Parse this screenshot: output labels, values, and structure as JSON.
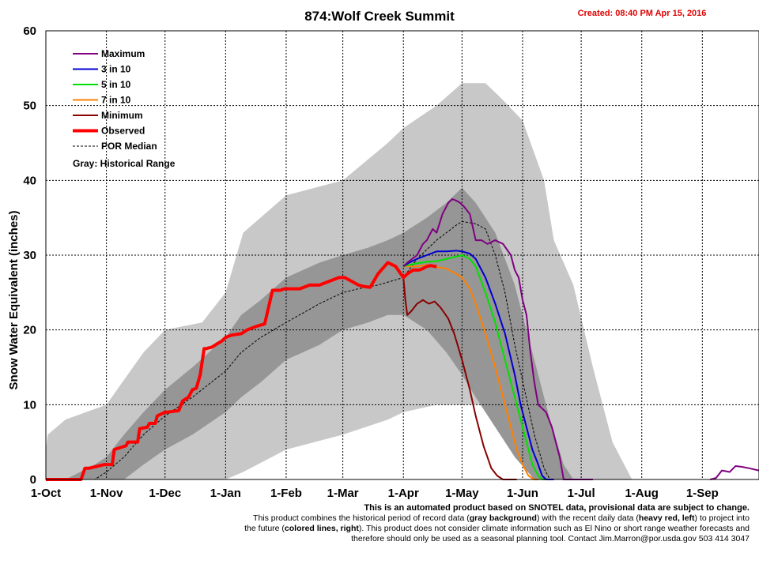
{
  "chart_data": {
    "type": "line",
    "title": "874:Wolf Creek Summit",
    "created": "Created: 08:40 PM Apr 15, 2016",
    "ylabel": "Snow Water Equivalent (inches)",
    "ylim": [
      0,
      60
    ],
    "yticks": [
      0,
      10,
      20,
      30,
      40,
      50,
      60
    ],
    "x_unit": "day of water year (Oct 1 = 0)",
    "xlim": [
      0,
      365
    ],
    "x_ticks": [
      {
        "day": 0,
        "label": "1-Oct"
      },
      {
        "day": 31,
        "label": "1-Nov"
      },
      {
        "day": 61,
        "label": "1-Dec"
      },
      {
        "day": 92,
        "label": "1-Jan"
      },
      {
        "day": 123,
        "label": "1-Feb"
      },
      {
        "day": 152,
        "label": "1-Mar"
      },
      {
        "day": 183,
        "label": "1-Apr"
      },
      {
        "day": 213,
        "label": "1-May"
      },
      {
        "day": 244,
        "label": "1-Jun"
      },
      {
        "day": 274,
        "label": "1-Jul"
      },
      {
        "day": 305,
        "label": "1-Aug"
      },
      {
        "day": 336,
        "label": "1-Sep"
      }
    ],
    "grid": true,
    "legend_position": "top-left",
    "legend_note": "Gray: Historical Range",
    "colors": {
      "hist_light": "#c8c8c8",
      "hist_dark": "#969696"
    },
    "historical_range": {
      "x": [
        0,
        1,
        10,
        31,
        50,
        61,
        80,
        92,
        101,
        123,
        152,
        175,
        183,
        200,
        213,
        225,
        233,
        244,
        255,
        260,
        270,
        280,
        290,
        300,
        305
      ],
      "lo": [
        0,
        0,
        0,
        0,
        0,
        0,
        0,
        0,
        1,
        4,
        6,
        8,
        9,
        10,
        10,
        10,
        9,
        5,
        1,
        0,
        0,
        0,
        0,
        0,
        0
      ],
      "hi": [
        4,
        6,
        8,
        10,
        17,
        20,
        21,
        25,
        33,
        38,
        40,
        45,
        47,
        50,
        53,
        53,
        51,
        48,
        40,
        32,
        26,
        15,
        5,
        0,
        0
      ]
    },
    "interquartile_range": {
      "x": [
        0,
        10,
        25,
        31,
        40,
        50,
        61,
        75,
        92,
        100,
        110,
        123,
        140,
        152,
        165,
        175,
        183,
        195,
        205,
        213,
        220,
        230,
        240,
        250,
        258,
        265,
        270
      ],
      "lo": [
        0,
        0,
        0,
        0,
        0,
        2,
        4,
        6,
        9,
        11,
        13,
        16,
        18,
        20,
        21,
        22,
        22,
        20,
        17,
        14,
        11,
        7,
        3,
        0,
        0,
        0,
        0
      ],
      "hi": [
        0,
        0,
        2,
        3,
        6,
        9,
        12,
        15,
        19,
        22,
        24,
        27,
        29,
        30,
        31,
        32,
        33,
        35,
        37,
        39,
        37,
        33,
        26,
        16,
        8,
        2,
        0
      ]
    },
    "series": [
      {
        "name": "Maximum",
        "color": "#800080",
        "width": 2,
        "x": [
          183,
          185,
          190,
          193,
          195,
          198,
          200,
          203,
          206,
          208,
          210,
          212,
          214,
          217,
          220,
          223,
          226,
          230,
          234,
          238,
          240,
          242,
          244,
          246,
          248,
          250,
          252,
          256,
          259,
          263,
          265,
          268,
          271,
          274,
          276,
          278,
          280
        ],
        "y": [
          28.5,
          29,
          30,
          31.5,
          32,
          33.5,
          33,
          35.5,
          37,
          37.5,
          37.3,
          37,
          36.5,
          35.5,
          32,
          32,
          31.5,
          32,
          31.5,
          30,
          28,
          27,
          24,
          22,
          17,
          13,
          10,
          9,
          7,
          3,
          0,
          0,
          0,
          0,
          0,
          0,
          0
        ]
      },
      {
        "name": "3 in 10",
        "color": "#0000d0",
        "width": 2,
        "x": [
          183,
          186,
          190,
          195,
          200,
          205,
          210,
          213,
          217,
          220,
          225,
          230,
          235,
          240,
          243,
          246,
          249,
          252,
          254,
          256,
          258,
          260
        ],
        "y": [
          28.5,
          29,
          29.5,
          30,
          30.5,
          30.5,
          30.6,
          30.5,
          30.2,
          29.5,
          27,
          23.5,
          19.5,
          14,
          10,
          7,
          4,
          2,
          0.5,
          0,
          0,
          0
        ]
      },
      {
        "name": "5 in 10",
        "color": "#00e000",
        "width": 2,
        "x": [
          183,
          186,
          190,
          195,
          200,
          205,
          210,
          213,
          217,
          220,
          225,
          230,
          235,
          240,
          243,
          246,
          249,
          252,
          254,
          256
        ],
        "y": [
          28.5,
          28.7,
          28.9,
          29.1,
          29.2,
          29.5,
          29.8,
          30,
          29.5,
          28.5,
          25,
          21,
          16,
          11,
          8,
          5,
          2,
          0.5,
          0,
          0
        ]
      },
      {
        "name": "7 in 10",
        "color": "#ff8000",
        "width": 2,
        "x": [
          183,
          186,
          190,
          195,
          200,
          205,
          210,
          213,
          217,
          220,
          225,
          230,
          235,
          238,
          241,
          244,
          247,
          250,
          252
        ],
        "y": [
          28.5,
          28.5,
          28.5,
          28.7,
          28.4,
          28.2,
          27.5,
          27,
          25.5,
          23.5,
          19.5,
          15,
          10,
          7,
          4,
          2,
          0.5,
          0,
          0
        ]
      },
      {
        "name": "Minimum",
        "color": "#8b0000",
        "width": 2,
        "x": [
          183,
          184,
          185,
          187,
          190,
          193,
          196,
          199,
          202,
          206,
          209,
          213,
          217,
          220,
          224,
          228,
          231,
          234,
          236,
          238,
          240,
          241
        ],
        "y": [
          27,
          24,
          22,
          22.5,
          23.5,
          24,
          23.5,
          23.8,
          23,
          21.5,
          19.5,
          16,
          12,
          8.5,
          4.5,
          1.5,
          0.5,
          0,
          0,
          0,
          0,
          0
        ]
      },
      {
        "name": "Observed",
        "color": "#ff0000",
        "width": 4,
        "x": [
          0,
          10,
          18,
          20,
          22,
          30,
          34,
          35,
          41,
          42,
          47,
          48,
          52,
          53,
          56,
          57,
          61,
          62,
          68,
          70,
          73,
          75,
          77,
          79,
          81,
          82,
          85,
          88,
          90,
          92,
          95,
          100,
          103,
          108,
          112,
          116,
          120,
          122,
          125,
          128,
          130,
          135,
          140,
          145,
          150,
          153,
          160,
          163,
          166,
          170,
          175,
          179,
          183,
          185,
          188,
          191,
          193,
          195,
          197,
          199,
          200
        ],
        "y": [
          0,
          0,
          0,
          1.5,
          1.5,
          2,
          2,
          4,
          4.5,
          5,
          5,
          6.8,
          7,
          7.5,
          7.5,
          8.5,
          9,
          9,
          9.2,
          10.5,
          11,
          12,
          12.2,
          14,
          17.5,
          17.5,
          17.7,
          18.2,
          18.5,
          19,
          19.3,
          19.5,
          20,
          20.5,
          20.8,
          25.3,
          25.3,
          25.5,
          25.5,
          25.5,
          25.5,
          26,
          26,
          26.5,
          27,
          27,
          26,
          25.8,
          25.7,
          27.5,
          29,
          28.5,
          27,
          27.5,
          28,
          28,
          28.2,
          28.5,
          28.6,
          28.5,
          28.5
        ]
      },
      {
        "name": "POR Median",
        "color": "#000000",
        "width": 1,
        "dash": "3,2",
        "x": [
          0,
          15,
          25,
          31,
          40,
          50,
          61,
          75,
          92,
          100,
          110,
          123,
          140,
          152,
          160,
          170,
          183,
          190,
          200,
          210,
          213,
          220,
          225,
          230,
          235,
          240,
          245,
          250,
          255,
          258,
          262
        ],
        "y": [
          0,
          0,
          0,
          1,
          3,
          6,
          8.5,
          11,
          14.5,
          17,
          19,
          21,
          23.5,
          25,
          25.5,
          26,
          27,
          29.5,
          32,
          34,
          34.5,
          34.2,
          33.5,
          30,
          25,
          18,
          12,
          6,
          1.5,
          0,
          0
        ]
      }
    ],
    "recent_tail": {
      "name": "late-season trace",
      "color": "#800080",
      "x": [
        340,
        343,
        346,
        350,
        353,
        356,
        360,
        365
      ],
      "y": [
        0,
        0.2,
        1.2,
        1,
        1.8,
        1.7,
        1.5,
        1.2
      ]
    }
  },
  "footer": {
    "line1": "This is an automated product based on SNOTEL data, provisional data are subject to change.",
    "p1": "This product combines the historical period of record data (",
    "b1": "gray background",
    "p2": ") with the recent daily data (",
    "b2": "heavy red, left",
    "p3": ") to project into the future (",
    "b3": "colored lines, right",
    "p4": "). This product does not consider climate information such as El Nino or short range weather forecasts and therefore should only be used as a seasonal planning tool. Contact Jim.Marron@por.usda.gov 503 414 3047"
  }
}
